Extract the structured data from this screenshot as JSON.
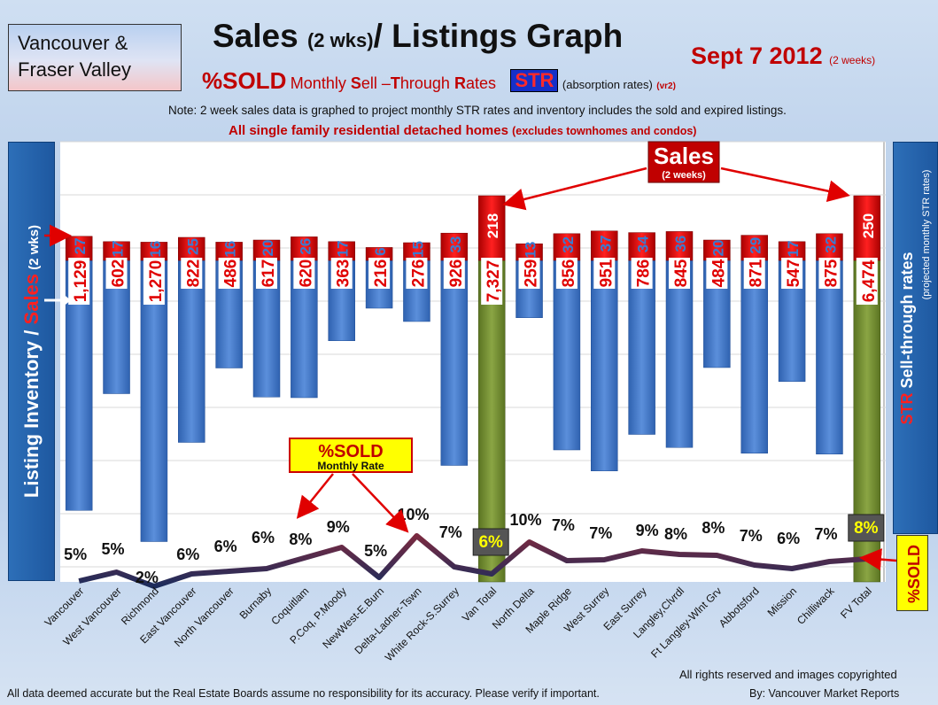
{
  "header": {
    "region": "Vancouver & Fraser Valley",
    "title_main": "Sales ",
    "title_small": "(2 wks)",
    "title_rest": "/ Listings Graph",
    "date_main": "Sept 7 2012 ",
    "date_small": "(2 weeks)",
    "pct_sold": "%SOLD",
    "rate_M": "M",
    "rate_onthly": "onthly ",
    "rate_S": "S",
    "rate_ell": "ell –",
    "rate_T": "T",
    "rate_hrough": "hrough ",
    "rate_R": "R",
    "rate_ates": "ates",
    "str_label": "STR",
    "absorption": "(absorption rates)",
    "version": "(vr2)",
    "note": "Note: 2 week sales data is graphed to project monthly STR rates and inventory includes the sold and expired listings.",
    "note2_main": "All single family residential detached homes ",
    "note2_small": "(excludes townhomes and condos)"
  },
  "side_labels": {
    "left_inventory": "Listing Inventory",
    "left_slash": " / ",
    "left_sales": "Sales",
    "left_wks": " (2 wks)",
    "right_str": "STR",
    "right_main": " Sell-through rates",
    "right_small": "(projected monthly STR rates)",
    "pct_sold_box": "%SOLD"
  },
  "callouts": {
    "sales_title": "Sales",
    "sales_sub": "(2 weeks)",
    "pct_title": "%SOLD",
    "pct_sub": "Monthly Rate"
  },
  "footer": {
    "rights": "All rights reserved and  images copyrighted",
    "disclaimer": "All data deemed accurate but the Real Estate Boards assume no responsibility for its accuracy.  Please verify if important.",
    "by": "By: Vancouver Market Reports"
  },
  "colors": {
    "listing_bar": "#3d72c2",
    "total_bar": "#6f8a2e",
    "sales_bar": "#cc0000",
    "line": "#1f2a55",
    "sales_label_blue": "#3a7ad0",
    "listing_label_red": "#e00000"
  },
  "chart_data": {
    "type": "bar",
    "categories": [
      "Vancouver",
      "West Vancouver",
      "Richmond",
      "East Vancouver",
      "North Vancouver",
      "Burnaby",
      "Coquitlam",
      "P.Coq, P.Moody",
      "NewWest-E.Burn",
      "Delta-Ladner-Tswn",
      "White Rock-S.Surrey",
      "Van Total",
      "North Delta",
      "Maple Ridge",
      "West Surrey",
      "East Surrey",
      "Langley,Clvrdl",
      "Ft Langley-Wlnt Grv",
      "Abbotsford",
      "Mission",
      "Chilliwack",
      "FV Total"
    ],
    "series": [
      {
        "name": "Sales",
        "values": [
          27,
          17,
          16,
          25,
          16,
          20,
          26,
          17,
          6,
          15,
          33,
          218,
          13,
          32,
          37,
          34,
          36,
          20,
          29,
          17,
          32,
          250
        ]
      },
      {
        "name": "Listing Inventory",
        "values": [
          1129,
          602,
          1270,
          822,
          486,
          617,
          620,
          363,
          216,
          276,
          926,
          7327,
          259,
          856,
          951,
          786,
          845,
          484,
          871,
          547,
          875,
          6474
        ]
      },
      {
        "name": "%SOLD",
        "values": [
          5,
          5,
          2,
          6,
          6,
          6,
          8,
          9,
          5,
          10,
          7,
          6,
          10,
          7,
          7,
          9,
          8,
          8,
          7,
          6,
          7,
          8
        ]
      }
    ],
    "sales_labels": [
      "27",
      "17",
      "16",
      "25",
      "16",
      "20",
      "26",
      "17",
      "6",
      "15",
      "33",
      "218",
      "13",
      "32",
      "37",
      "34",
      "36",
      "20",
      "29",
      "17",
      "32",
      "250"
    ],
    "listing_labels": [
      "1,129",
      "602",
      "1,270",
      "822",
      "486",
      "617",
      "620",
      "363",
      "216",
      "276",
      "926",
      "7,327",
      "259",
      "856",
      "951",
      "786",
      "845",
      "484",
      "871",
      "547",
      "875",
      "6,474"
    ],
    "pct_labels": [
      "5%",
      "5%",
      "2%",
      "6%",
      "6%",
      "6%",
      "8%",
      "9%",
      "5%",
      "10%",
      "7%",
      "6%",
      "10%",
      "7%",
      "7%",
      "9%",
      "8%",
      "8%",
      "7%",
      "6%",
      "7%",
      "8%"
    ],
    "totals": [
      "Van Total",
      "FV Total"
    ]
  }
}
